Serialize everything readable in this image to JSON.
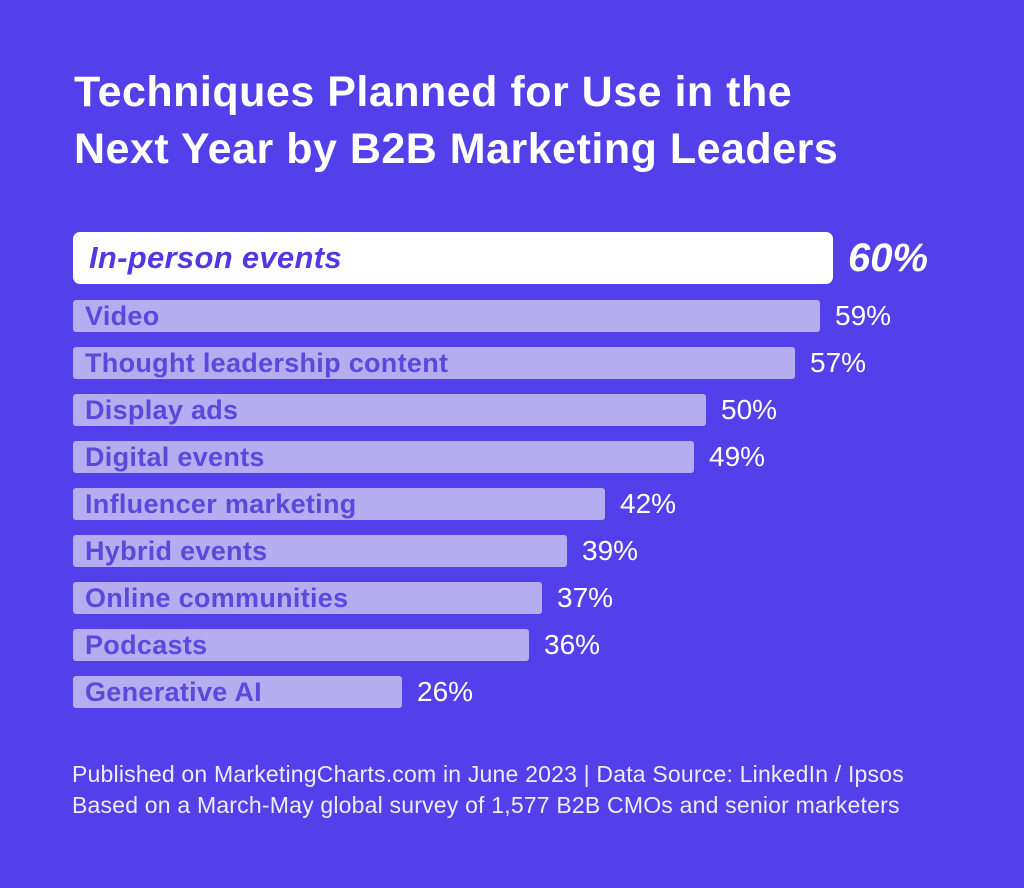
{
  "ui": {
    "title_lines": [
      "Techniques Planned for Use in the",
      "Next Year by B2B Marketing Leaders"
    ],
    "footer_lines": [
      "Published on MarketingCharts.com in June 2023 | Data Source: LinkedIn / Ipsos",
      "Based on a March-May global survey of 1,577 B2B CMOs and senior marketers"
    ]
  },
  "colors": {
    "background": "#5340EA",
    "bar_fill": "#B6ACF0",
    "highlight_bar_fill": "#FFFFFF",
    "bar_label_text": "#5B48DC",
    "highlight_label_text": "#5238E4",
    "value_text": "#FFFFFF",
    "title_text": "#FFFFFF",
    "footer_text": "#EFECFC"
  },
  "chart_data": {
    "type": "bar",
    "orientation": "horizontal",
    "title": "Techniques Planned for Use in the Next Year by B2B Marketing Leaders",
    "categories": [
      "In-person events",
      "Video",
      "Thought leadership content",
      "Display ads",
      "Digital events",
      "Influencer marketing",
      "Hybrid events",
      "Online communities",
      "Podcasts",
      "Generative AI"
    ],
    "values": [
      60,
      59,
      57,
      50,
      49,
      42,
      39,
      37,
      36,
      26
    ],
    "unit": "%",
    "xlim": [
      0,
      60
    ],
    "highlight_index": 0,
    "grid": false,
    "legend": false,
    "value_labels_position": "right-of-bar",
    "footer": "Published on MarketingCharts.com in June 2023 | Data Source: LinkedIn / Ipsos Based on a March-May global survey of 1,577 B2B CMOs and senior marketers"
  }
}
